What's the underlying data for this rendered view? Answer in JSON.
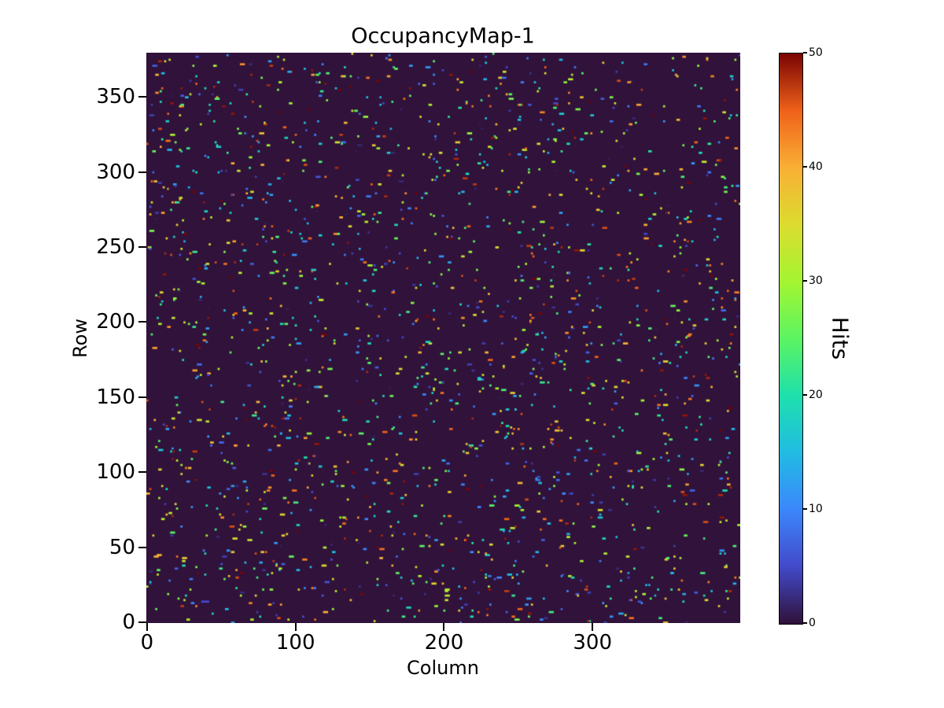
{
  "chart_data": {
    "type": "heatmap",
    "title": "OccupancyMap-1",
    "xlabel": "Column",
    "ylabel": "Row",
    "n_cols": 400,
    "n_rows": 380,
    "xticks": [
      0,
      100,
      200,
      300
    ],
    "yticks": [
      0,
      50,
      100,
      150,
      200,
      250,
      300,
      350
    ],
    "xlim": [
      0,
      400
    ],
    "ylim": [
      0,
      380
    ],
    "grid": false,
    "colormap": "turbo",
    "colors": {
      "figure_background": "#ffffff",
      "zero_value": "#30123b",
      "max_value": "#7a0403"
    },
    "colorbar": {
      "label": "Hits",
      "ticks": [
        0,
        10,
        20,
        30,
        40,
        50
      ],
      "vmin": 0,
      "vmax": 50
    },
    "points": {
      "description": "sparse random occupancy hits over an otherwise zero-valued pixel matrix",
      "count": 2000,
      "seed": 42,
      "value_range": [
        1,
        50
      ]
    }
  }
}
